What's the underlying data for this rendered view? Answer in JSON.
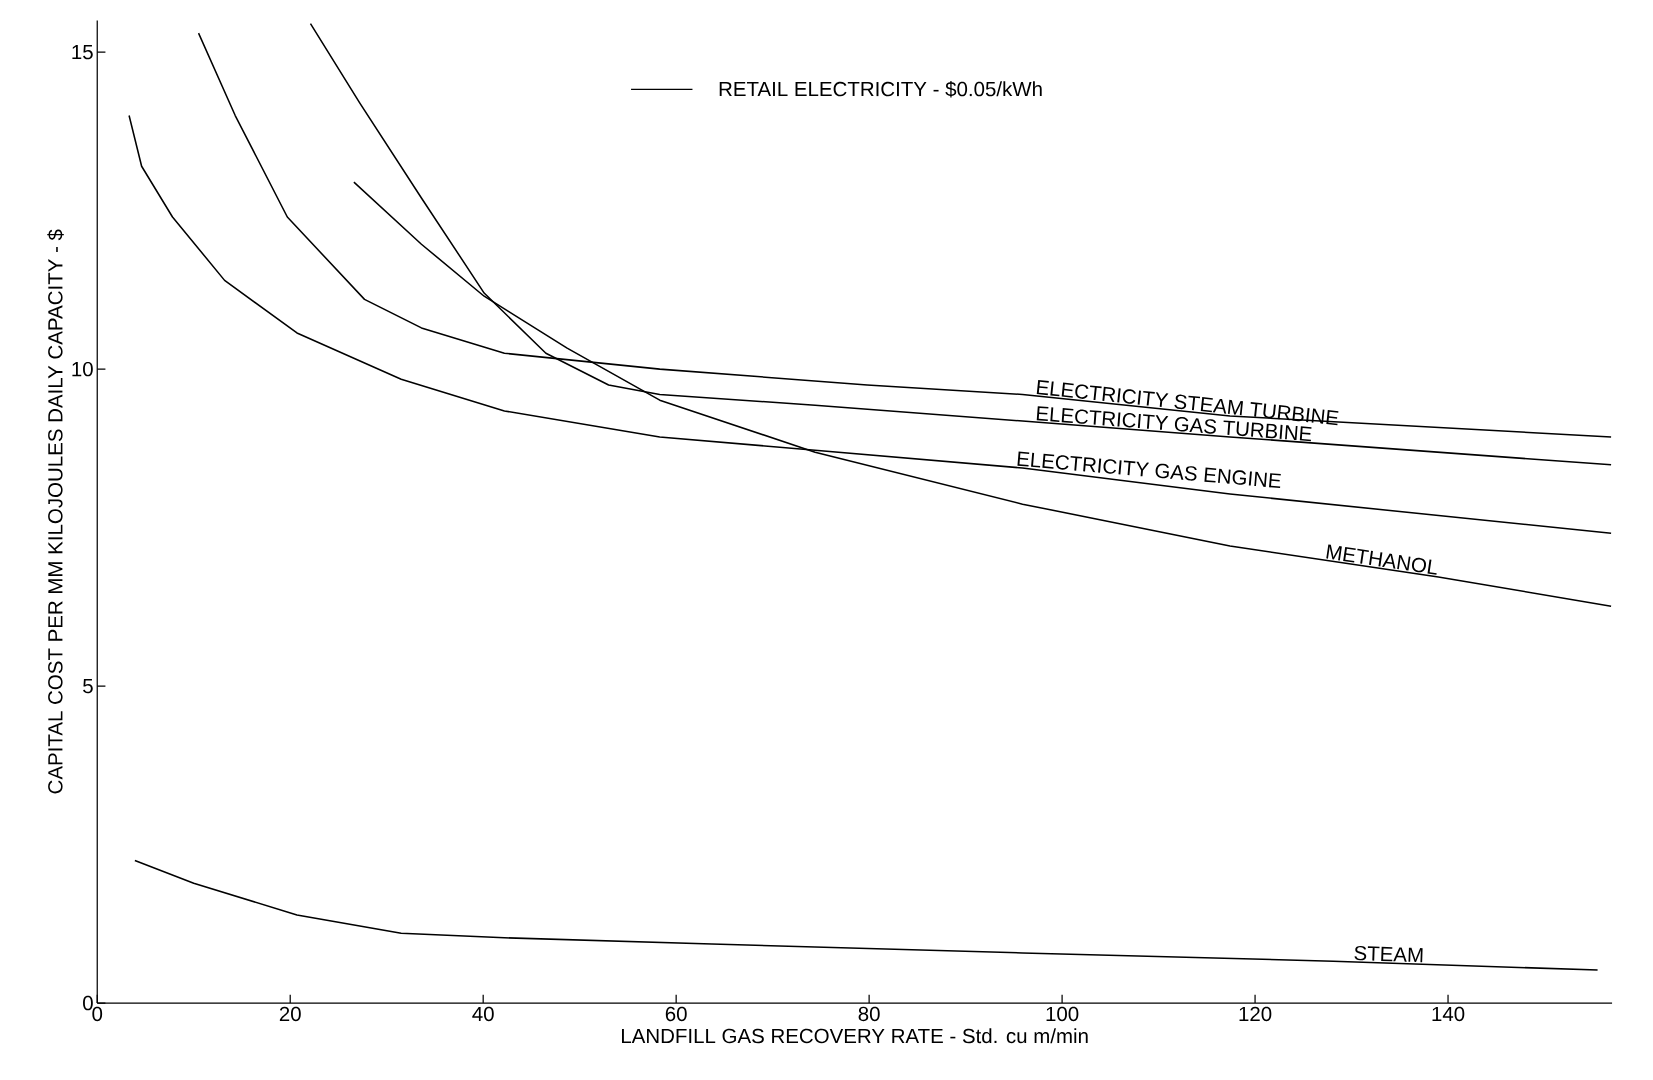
{
  "chart_data": {
    "type": "line",
    "xlabel": "LANDFILL GAS RECOVERY RATE - Std. cu m/min",
    "ylabel": "CAPITAL COST PER MM KILOJOULES DAILY CAPACITY - $",
    "xlim": [
      0,
      157
    ],
    "ylim": [
      0,
      15.5
    ],
    "xticks": [
      0,
      20,
      40,
      60,
      80,
      100,
      120,
      140
    ],
    "yticks": [
      0,
      5,
      10,
      15
    ],
    "annotations": [
      "RETAIL ELECTRICITY - $0.05/kWh"
    ],
    "series": [
      {
        "name": "ELECTRICITY STEAM TURBINE",
        "color": "#000000",
        "x": [
          10.5,
          14.3,
          19.7,
          27.7,
          33.6,
          42.2,
          58.3,
          79.8,
          95.9,
          117.4,
          156.9
        ],
        "values": [
          15.3,
          14.0,
          12.4,
          11.1,
          10.65,
          10.25,
          10.0,
          9.75,
          9.6,
          9.26,
          8.93
        ]
      },
      {
        "name": "ELECTRICITY GAS TURBINE",
        "color": "#000000",
        "x": [
          22.1,
          27.2,
          33.6,
          40.1,
          46.5,
          53,
          58.3,
          74.4,
          95.9,
          117.4,
          156.9
        ],
        "values": [
          15.45,
          14.2,
          12.7,
          11.2,
          10.25,
          9.75,
          9.6,
          9.43,
          9.18,
          8.93,
          8.49
        ]
      },
      {
        "name": "ELECTRICITY GAS ENGINE",
        "color": "#000000",
        "x": [
          3.3,
          4.6,
          7.8,
          13.2,
          20.7,
          31.5,
          42.2,
          58.3,
          74.4,
          95.9,
          117.4,
          156.9
        ],
        "values": [
          14.0,
          13.2,
          12.4,
          11.4,
          10.57,
          9.84,
          9.34,
          8.93,
          8.72,
          8.44,
          8.03,
          7.41
        ]
      },
      {
        "name": "METHANOL",
        "color": "#000000",
        "x": [
          26.6,
          33.6,
          40.1,
          48.7,
          58.3,
          74.4,
          95.9,
          117.4,
          139,
          156.9
        ],
        "values": [
          12.95,
          11.97,
          11.15,
          10.33,
          9.51,
          8.69,
          7.87,
          7.21,
          6.72,
          6.26
        ]
      },
      {
        "name": "STEAM",
        "color": "#000000",
        "x": [
          3.9,
          10,
          20.7,
          31.5,
          42.2,
          63.7,
          95.9,
          128.1,
          155.5
        ],
        "values": [
          2.25,
          1.89,
          1.39,
          1.1,
          1.03,
          0.93,
          0.79,
          0.66,
          0.52
        ]
      }
    ]
  }
}
